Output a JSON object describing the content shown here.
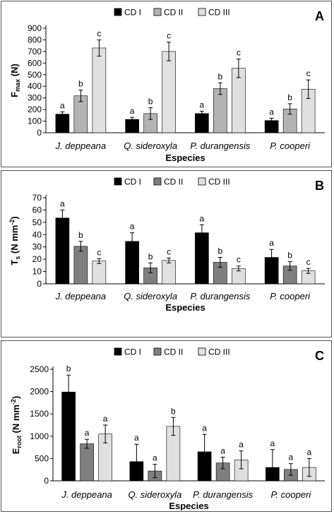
{
  "colors": {
    "CD I": "#000000",
    "CD II": "#7f7f7f",
    "CD III": "#e0e0e0",
    "CD II (panel A)": "#b3b3b3"
  },
  "chart_data": [
    {
      "type": "bar",
      "panel_label": "A",
      "categories": [
        "J. deppeana",
        "Q. sideroxyla",
        "P. durangensis",
        "P. cooperi"
      ],
      "xlabel": "Especies",
      "ylabel_main": "F",
      "ylabel_sub": "max",
      "ylabel_unit": " (N)",
      "ylim": [
        0,
        900
      ],
      "yticks": [
        0,
        100,
        200,
        300,
        400,
        500,
        600,
        700,
        800,
        900
      ],
      "legend": [
        "CD I",
        "CD II",
        "CD III"
      ],
      "legend_position": "top-center",
      "series": [
        {
          "name": "CD I",
          "values": [
            160,
            115,
            165,
            105
          ],
          "errors": [
            20,
            18,
            20,
            20
          ],
          "letters": [
            "a",
            "a",
            "a",
            "a"
          ],
          "color": "#000000"
        },
        {
          "name": "CD II",
          "values": [
            318,
            165,
            380,
            205
          ],
          "errors": [
            50,
            50,
            50,
            45
          ],
          "letters": [
            "b",
            "b",
            "b",
            "b"
          ],
          "color": "#b3b3b3"
        },
        {
          "name": "CD III",
          "values": [
            730,
            700,
            555,
            375
          ],
          "errors": [
            70,
            80,
            80,
            80
          ],
          "letters": [
            "c",
            "c",
            "c",
            "c"
          ],
          "color": "#e0e0e0"
        }
      ]
    },
    {
      "type": "bar",
      "panel_label": "B",
      "categories": [
        "J. deppeana",
        "Q. sideroxyla",
        "P. durangensis",
        "P. cooperi"
      ],
      "xlabel": "Especies",
      "ylabel_main": "T",
      "ylabel_sub": "s",
      "ylabel_unit": " (N mm",
      "ylabel_sup": "-2",
      "ylabel_close": ")",
      "ylim": [
        0,
        70
      ],
      "yticks": [
        0,
        10,
        20,
        30,
        40,
        50,
        60,
        70
      ],
      "legend": [
        "CD I",
        "CD II",
        "CD III"
      ],
      "legend_position": "top-center",
      "series": [
        {
          "name": "CD I",
          "values": [
            53.5,
            34.5,
            41.5,
            21.5
          ],
          "errors": [
            6.5,
            7,
            6.5,
            6.5
          ],
          "letters": [
            "a",
            "a",
            "a",
            "a"
          ],
          "color": "#000000"
        },
        {
          "name": "CD II",
          "values": [
            30.5,
            13,
            17.5,
            14.5
          ],
          "errors": [
            4,
            4,
            4,
            3.5
          ],
          "letters": [
            "b",
            "b",
            "b",
            "b"
          ],
          "color": "#7f7f7f"
        },
        {
          "name": "CD III",
          "values": [
            18.5,
            19,
            12.5,
            10.5
          ],
          "errors": [
            2,
            2,
            2,
            2
          ],
          "letters": [
            "c",
            "c",
            "c",
            "c"
          ],
          "color": "#e0e0e0"
        }
      ]
    },
    {
      "type": "bar",
      "panel_label": "C",
      "categories": [
        "J. deppeana",
        "Q. sideroxyla",
        "P. durangensis",
        "P. cooperi"
      ],
      "xlabel": "Especies",
      "ylabel_main": "E",
      "ylabel_sub": "root",
      "ylabel_unit": " (N mm",
      "ylabel_sup": "-2",
      "ylabel_close": ")",
      "ylim": [
        0,
        2500
      ],
      "yticks": [
        0,
        500,
        1000,
        1500,
        2000,
        2500
      ],
      "legend": [
        "CD I",
        "CD II",
        "CD III"
      ],
      "legend_position": "top-center",
      "series": [
        {
          "name": "CD I",
          "values": [
            1990,
            430,
            650,
            300
          ],
          "errors": [
            380,
            390,
            390,
            400
          ],
          "letters": [
            "b",
            "a",
            "a",
            "a"
          ],
          "color": "#000000"
        },
        {
          "name": "CD II",
          "values": [
            830,
            220,
            400,
            255
          ],
          "errors": [
            100,
            150,
            130,
            130
          ],
          "letters": [
            "a",
            "a",
            "a",
            "a"
          ],
          "color": "#7f7f7f"
        },
        {
          "name": "CD III",
          "values": [
            1050,
            1220,
            470,
            300
          ],
          "errors": [
            200,
            200,
            200,
            200
          ],
          "letters": [
            "a",
            "b",
            "a",
            "a"
          ],
          "color": "#e0e0e0"
        }
      ]
    }
  ]
}
